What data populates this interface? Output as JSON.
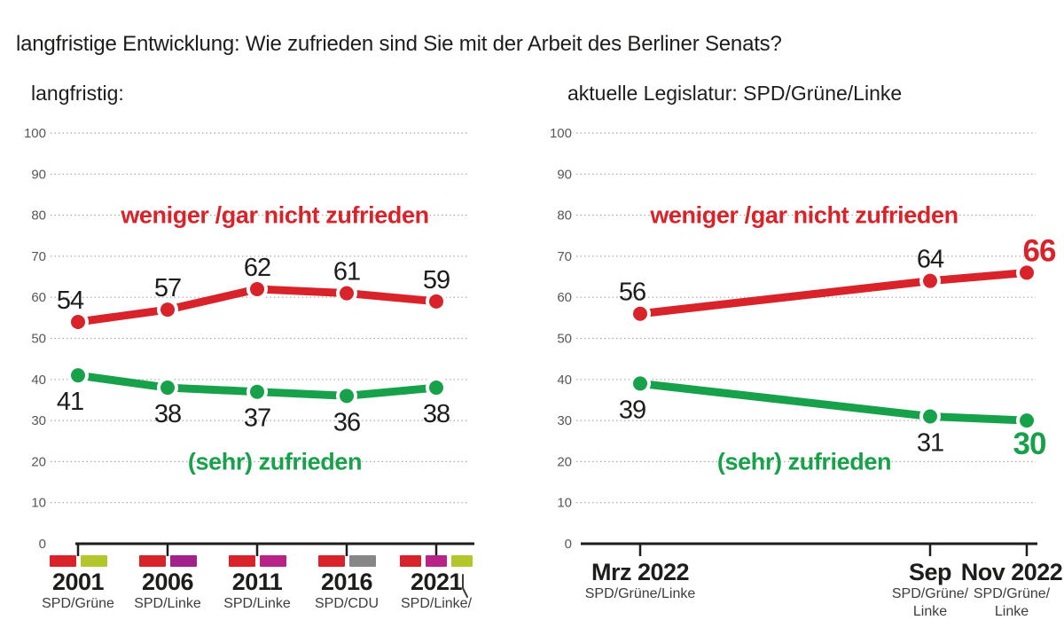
{
  "page": {
    "title": "langfristige Entwicklung: Wie zufrieden sind Sie mit der Arbeit des Berliner Senats?",
    "background": "#ffffff",
    "cursor_icon": "text-cursor"
  },
  "colors": {
    "red": "#d8232a",
    "green": "#18a14b",
    "value_label": "#1d1d1b",
    "axis": "#1d1d1b",
    "grid": "#a8a8a8",
    "ytick_label": "#575756",
    "sublabel": "#3c3c3b",
    "spd_red": "#d8232a",
    "gruene_lime": "#b3c62b",
    "linke_magenta": "#b72387",
    "cdu_gray": "#878787"
  },
  "chart_data": [
    {
      "type": "line",
      "title": "langfristig:",
      "xlim": [
        2001,
        2021
      ],
      "ylim": [
        0,
        100
      ],
      "yticks": [
        0,
        10,
        20,
        30,
        40,
        50,
        60,
        70,
        80,
        90,
        100
      ],
      "grid": "dotted horizontal",
      "legend_position": "inline colored annotations",
      "x": [
        2001,
        2006,
        2011,
        2016,
        2021
      ],
      "x_tick_labels": [
        "2001",
        "2006",
        "2011",
        "2016",
        "2021"
      ],
      "x_sublabels": [
        [
          "SPD/Grüne"
        ],
        [
          "SPD/Linke"
        ],
        [
          "SPD/Linke"
        ],
        [
          "SPD/CDU"
        ],
        [
          "SPD/Linke/"
        ]
      ],
      "coalition_swatches": [
        [
          "#d8232a",
          "#b3c62b"
        ],
        [
          "#d8232a",
          "#a3218a"
        ],
        [
          "#d8232a",
          "#b72387"
        ],
        [
          "#d8232a",
          "#878787"
        ],
        [
          "#d8232a",
          "#b72387",
          "#b3c62b"
        ]
      ],
      "series": [
        {
          "name": "weniger /gar nicht zufrieden",
          "color": "#d8232a",
          "values": [
            54,
            57,
            62,
            61,
            59
          ],
          "value_label_side": "above",
          "annotation_y": 80
        },
        {
          "name": "(sehr) zufrieden",
          "color": "#18a14b",
          "values": [
            41,
            38,
            37,
            36,
            38
          ],
          "value_label_side": "below",
          "annotation_y": 20
        }
      ]
    },
    {
      "type": "line",
      "title": "aktuelle Legislatur: SPD/Grüne/Linke",
      "xlim": [
        3,
        11
      ],
      "ylim": [
        0,
        100
      ],
      "yticks": [
        0,
        10,
        20,
        30,
        40,
        50,
        60,
        70,
        80,
        90,
        100
      ],
      "grid": "dotted horizontal",
      "legend_position": "inline colored annotations",
      "x": [
        3,
        9,
        11
      ],
      "x_tick_labels": [
        "Mrz 2022",
        "Sep",
        "Nov 2022"
      ],
      "x_sublabels": [
        [
          "SPD/Grüne/Linke"
        ],
        [
          "SPD/Grüne/",
          "Linke"
        ],
        [
          "SPD/Grüne/",
          "Linke"
        ]
      ],
      "series": [
        {
          "name": "weniger /gar nicht zufrieden",
          "color": "#d8232a",
          "values": [
            56,
            64,
            66
          ],
          "value_label_side": "above",
          "annotation_y": 80,
          "emphasize_last": true
        },
        {
          "name": "(sehr) zufrieden",
          "color": "#18a14b",
          "values": [
            39,
            31,
            30
          ],
          "value_label_side": "below",
          "annotation_y": 20,
          "emphasize_last": true
        }
      ]
    }
  ]
}
